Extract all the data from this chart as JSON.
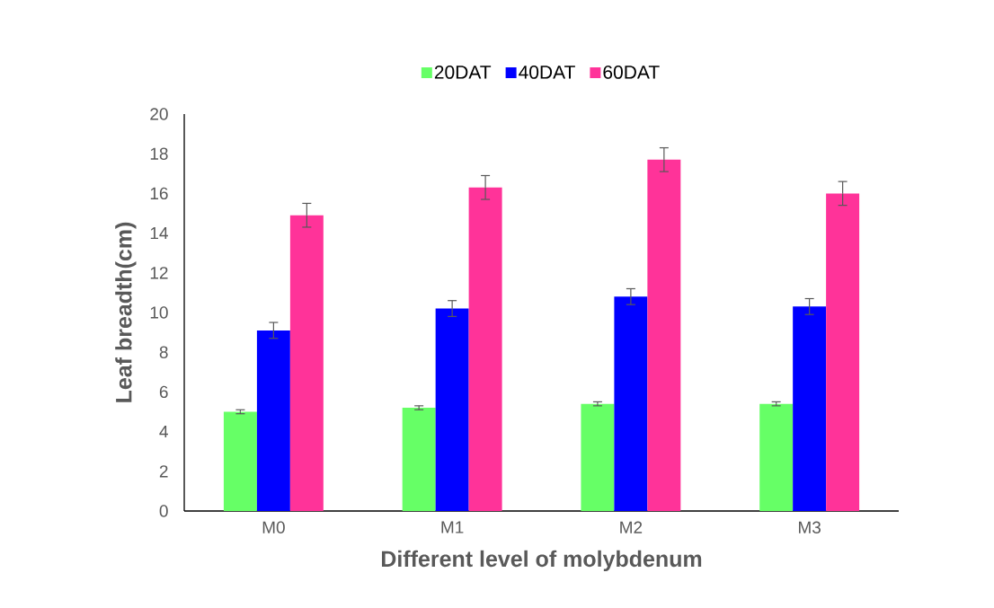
{
  "chart_data": {
    "type": "bar",
    "xlabel": "Different level of molybdenum",
    "ylabel": "Leaf breadth(cm)",
    "categories": [
      "M0",
      "M1",
      "M2",
      "M3"
    ],
    "series": [
      {
        "name": "20DAT",
        "color": "#66ff66",
        "values": [
          5.0,
          5.2,
          5.4,
          5.4
        ],
        "errors": [
          0.1,
          0.1,
          0.1,
          0.1
        ]
      },
      {
        "name": "40DAT",
        "color": "#0000ff",
        "values": [
          9.1,
          10.2,
          10.8,
          10.3
        ],
        "errors": [
          0.4,
          0.4,
          0.4,
          0.4
        ]
      },
      {
        "name": "60DAT",
        "color": "#ff3399",
        "values": [
          14.9,
          16.3,
          17.7,
          16.0
        ],
        "errors": [
          0.6,
          0.6,
          0.6,
          0.6
        ]
      }
    ],
    "ylim": [
      0,
      20
    ],
    "yticks": [
      0,
      2,
      4,
      6,
      8,
      10,
      12,
      14,
      16,
      18,
      20
    ],
    "grid": false,
    "legend": "top"
  }
}
